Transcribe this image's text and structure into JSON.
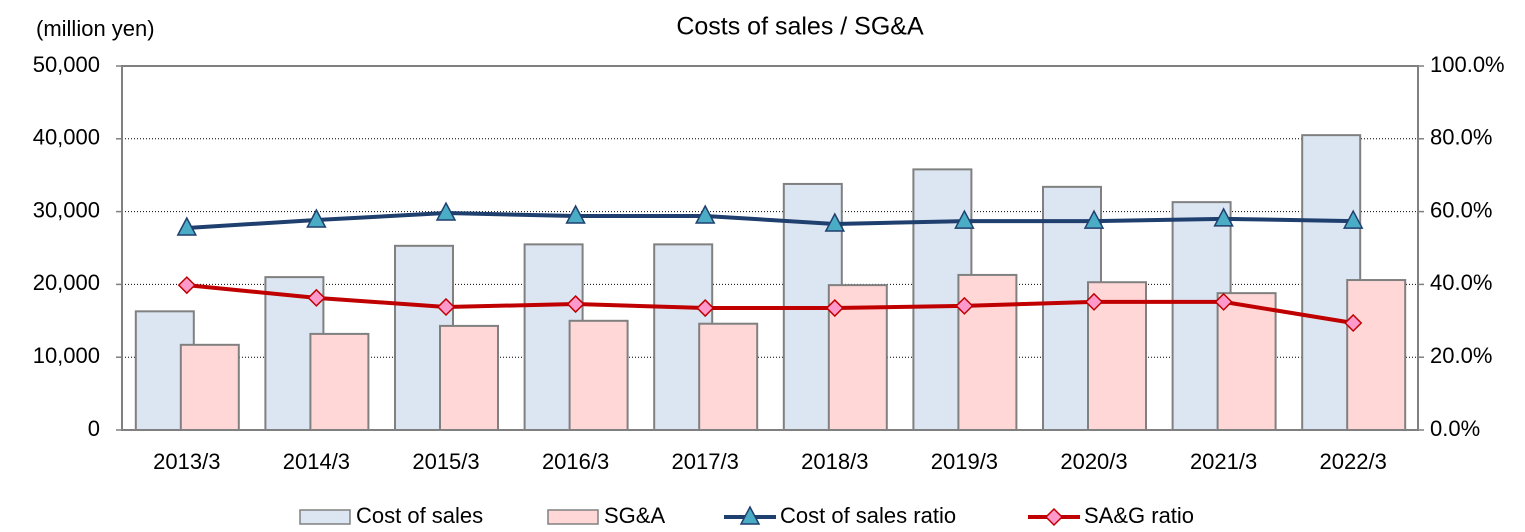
{
  "chart_data": {
    "type": "bar",
    "title": "Costs of sales / SG&A",
    "y_label": "(million yen)",
    "categories": [
      "2013/3",
      "2014/3",
      "2015/3",
      "2016/3",
      "2017/3",
      "2018/3",
      "2019/3",
      "2020/3",
      "2021/3",
      "2022/3"
    ],
    "series": [
      {
        "name": "Cost of sales",
        "type": "bar",
        "color": "#dce6f2",
        "values": [
          16300,
          21000,
          25300,
          25500,
          25500,
          33800,
          35800,
          33400,
          31300,
          40500
        ]
      },
      {
        "name": "SG&A",
        "type": "bar",
        "color": "#ffd7d7",
        "values": [
          11700,
          13200,
          14300,
          15000,
          14600,
          19900,
          21300,
          20300,
          18800,
          20600
        ]
      },
      {
        "name": "Cost of sales ratio",
        "type": "line",
        "axis": "y2",
        "color": "#1f3f6e",
        "marker": "triangle",
        "marker_color": "#4bacc6",
        "values": [
          55.5,
          57.7,
          59.6,
          58.8,
          58.8,
          56.6,
          57.4,
          57.4,
          58.0,
          57.4
        ]
      },
      {
        "name": "SA&G ratio",
        "type": "line",
        "axis": "y2",
        "color": "#c00000",
        "marker": "diamond",
        "marker_color": "#ff99cc",
        "values": [
          39.8,
          36.3,
          33.8,
          34.6,
          33.5,
          33.5,
          34.1,
          35.2,
          35.2,
          29.4
        ]
      }
    ],
    "ylim": [
      0,
      50000
    ],
    "yticks": [
      0,
      {
        "value": 10000,
        "label": "10,000"
      },
      {
        "value": 20000,
        "label": "20,000"
      },
      {
        "value": 30000,
        "label": "30,000"
      },
      {
        "value": 40000,
        "label": "40,000"
      },
      {
        "value": 50000,
        "label": "50,000"
      }
    ],
    "y2lim": [
      0,
      100
    ],
    "y2ticks": [
      {
        "value": 0,
        "label": "0.0%"
      },
      {
        "value": 20,
        "label": "20.0%"
      },
      {
        "value": 40,
        "label": "40.0%"
      },
      {
        "value": 60,
        "label": "60.0%"
      },
      {
        "value": 80,
        "label": "80.0%"
      },
      {
        "value": 100,
        "label": "100.0%"
      }
    ],
    "grid": true,
    "legend": "bottom"
  }
}
